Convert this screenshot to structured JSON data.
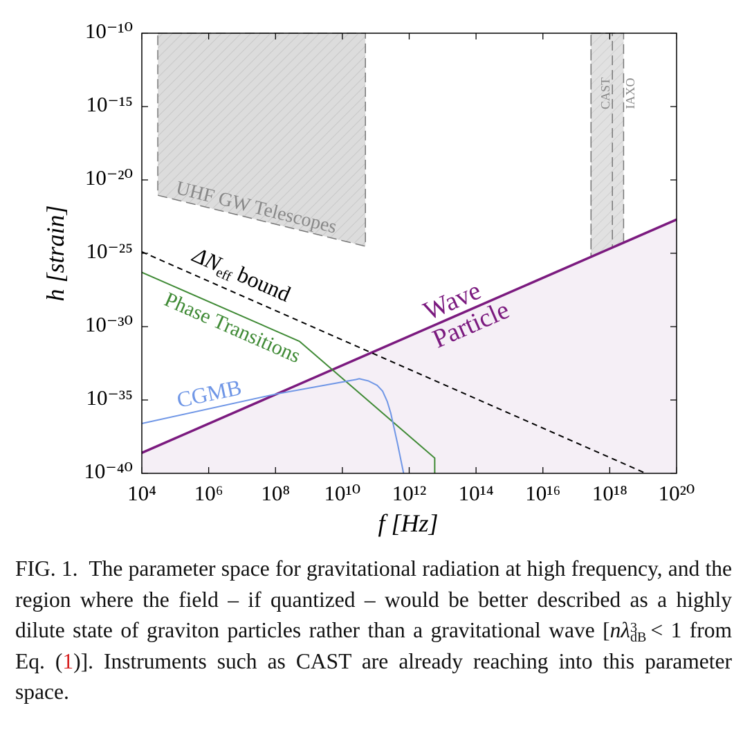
{
  "chart_data": {
    "type": "line",
    "xlabel": "f [Hz]",
    "ylabel": "h [strain]",
    "xscale": "log",
    "yscale": "log",
    "xlim": [
      10000.0,
      1e+20
    ],
    "ylim": [
      1e-40,
      1e-10
    ],
    "xticks": [
      {
        "value": 10000.0,
        "label": "10⁴"
      },
      {
        "value": 1000000.0,
        "label": "10⁶"
      },
      {
        "value": 100000000.0,
        "label": "10⁸"
      },
      {
        "value": 10000000000.0,
        "label": "10¹⁰"
      },
      {
        "value": 1000000000000.0,
        "label": "10¹²"
      },
      {
        "value": 100000000000000.0,
        "label": "10¹⁴"
      },
      {
        "value": 1e+16,
        "label": "10¹⁶"
      },
      {
        "value": 1e+18,
        "label": "10¹⁸"
      },
      {
        "value": 1e+20,
        "label": "10²⁰"
      }
    ],
    "yticks": [
      {
        "value": 1e-40,
        "label": "10⁻⁴⁰"
      },
      {
        "value": 1e-35,
        "label": "10⁻³⁵"
      },
      {
        "value": 1e-30,
        "label": "10⁻³⁰"
      },
      {
        "value": 1e-25,
        "label": "10⁻²⁵"
      },
      {
        "value": 1e-20,
        "label": "10⁻²⁰"
      },
      {
        "value": 1e-15,
        "label": "10⁻¹⁵"
      },
      {
        "value": 1e-10,
        "label": "10⁻¹⁰"
      }
    ],
    "regions": [
      {
        "name": "UHF GW Telescopes",
        "x": [
          30000.0,
          49000000000.0
        ],
        "bottom": [
          9e-22,
          3e-25
        ]
      },
      {
        "name": "IAXO",
        "x": [
          2.75e+17,
          2.6e+18
        ],
        "bottom": [
          1.1e-29,
          1.1e-29
        ]
      },
      {
        "name": "CAST",
        "x": [
          2.75e+17,
          1.2e+18
        ],
        "bottom": [
          5e-28,
          5e-28
        ]
      }
    ],
    "series": [
      {
        "labels": [
          "Wave",
          "Particle"
        ],
        "color": "#7b1a7f",
        "fill": "#f5eff6",
        "x": [
          10000.0,
          1e+20
        ],
        "values": [
          2.5e-39,
          2e-23
        ]
      },
      {
        "label_parts": [
          "ΔN",
          "eff",
          "bound"
        ],
        "color": "#000000",
        "dashed": true,
        "x": [
          10000.0,
          1.2e+19
        ],
        "values": [
          1.26e-25,
          1e-40
        ]
      },
      {
        "name": "Phase Transitions",
        "color": "#3f8a35",
        "x": [
          10000.0,
          520000000.0,
          5800000000000.0,
          5800000000000.0
        ],
        "values": [
          5e-27,
          1e-31,
          1.1e-39,
          1e-40
        ]
      },
      {
        "name": "CGMB",
        "color": "#6f96e6",
        "x": [
          10000.0,
          100000000.0,
          26000000000.0,
          32000000000.0,
          60000000000.0,
          110000000000.0,
          160000000000.0,
          220000000000.0,
          280000000000.0,
          360000000000.0,
          450000000000.0,
          680000000000.0
        ],
        "values": [
          2.5e-37,
          2.5e-35,
          2.5e-34,
          2.8e-34,
          2e-34,
          1e-34,
          4e-35,
          8e-36,
          1.3e-36,
          1e-37,
          1e-38,
          1e-40
        ]
      }
    ]
  },
  "caption": {
    "label": "FIG. 1.",
    "text1": "The parameter space for gravitational radiation at high frequency, and the region where the field – if quantized – would be better described as a highly dilute state of graviton particles rather than a gravitational wave [",
    "math_var": "nλ",
    "math_sup": "3",
    "math_sub": "dB",
    "text2": "< 1 from Eq. (",
    "ref": "1",
    "text3": ")]. Instruments such as CAST are already reaching into this parameter space."
  }
}
